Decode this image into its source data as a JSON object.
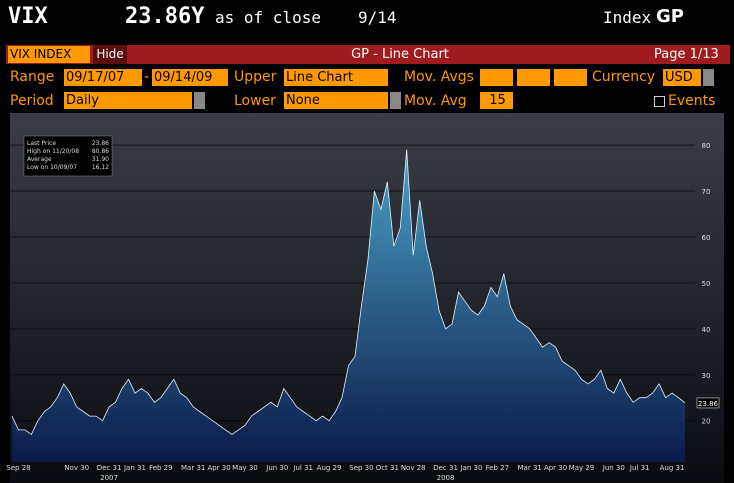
{
  "header": {
    "ticker": "VIX",
    "price": "23.86Y",
    "as_of": "as of close",
    "date": "9/14",
    "asset_class": "Index",
    "function": "GP"
  },
  "toolbar": {
    "security": "VIX INDEX",
    "hide": "Hide",
    "title": "GP - Line Chart",
    "page": "Page 1/13"
  },
  "fields": {
    "range_label": "Range",
    "range_start": "09/17/07",
    "range_sep": "-",
    "range_end": "09/14/09",
    "upper_label": "Upper",
    "upper": "Line Chart",
    "mov_avgs_label": "Mov. Avgs",
    "currency_label": "Currency",
    "currency": "USD",
    "period_label": "Period",
    "period": "Daily",
    "lower_label": "Lower",
    "lower": "None",
    "mov_avg_label": "Mov. Avg",
    "mov_avg": "15",
    "events": "Events"
  },
  "chart_data": {
    "type": "area",
    "color": "#3f8fb8",
    "line_color": "#e8f0f8",
    "categories": [
      null,
      "Sep 28",
      null,
      null,
      null,
      null,
      null,
      null,
      null,
      null,
      "Nov 30",
      null,
      null,
      null,
      null,
      "Dec 31",
      null,
      null,
      null,
      "Jan 31",
      null,
      null,
      null,
      "Feb 29",
      null,
      null,
      null,
      null,
      "Mar 31",
      null,
      null,
      null,
      "Apr 30",
      null,
      null,
      null,
      "May 30",
      null,
      null,
      null,
      null,
      "Jun 30",
      null,
      null,
      null,
      "Jul 31",
      null,
      null,
      null,
      "Aug 29",
      null,
      null,
      null,
      null,
      "Sep 30",
      null,
      null,
      null,
      "Oct 31",
      null,
      null,
      null,
      "Nov 28",
      null,
      null,
      null,
      null,
      "Dec 31",
      null,
      null,
      null,
      "Jan 30",
      null,
      null,
      null,
      "Feb 27",
      null,
      null,
      null,
      null,
      "Mar 31",
      null,
      null,
      null,
      "Apr 30",
      null,
      null,
      null,
      "May 29",
      null,
      null,
      null,
      null,
      "Jun 30",
      null,
      null,
      null,
      "Jul 31",
      null,
      null,
      null,
      null,
      "Aug 31",
      null,
      null
    ],
    "values": [
      21,
      18,
      18,
      17,
      20,
      22,
      23,
      25,
      28,
      26,
      23,
      22,
      21,
      21,
      20,
      23,
      24,
      27,
      29,
      26,
      27,
      26,
      24,
      25,
      27,
      29,
      26,
      25,
      23,
      22,
      21,
      20,
      19,
      18,
      17,
      18,
      19,
      21,
      22,
      23,
      24,
      23,
      27,
      25,
      23,
      22,
      21,
      20,
      21,
      20,
      22,
      25,
      32,
      34,
      45,
      55,
      70,
      66,
      72,
      58,
      62,
      79,
      56,
      68,
      58,
      52,
      44,
      40,
      41,
      48,
      46,
      44,
      43,
      45,
      49,
      47,
      52,
      45,
      42,
      41,
      40,
      38,
      36,
      37,
      36,
      33,
      32,
      31,
      29,
      28,
      29,
      31,
      27,
      26,
      29,
      26,
      24,
      25,
      25,
      26,
      28,
      25,
      26,
      25,
      23.86
    ],
    "year_labels": [
      "2007",
      "2008"
    ],
    "ylim": [
      11,
      87
    ],
    "yticks": [
      20,
      30,
      40,
      50,
      60,
      70,
      80
    ],
    "grid": true,
    "stats": [
      [
        "Last Price",
        "23.86"
      ],
      [
        "High on 11/20/08",
        "80.86"
      ],
      [
        "Average",
        "31.90"
      ],
      [
        "Low on 10/09/07",
        "16.12"
      ]
    ]
  }
}
